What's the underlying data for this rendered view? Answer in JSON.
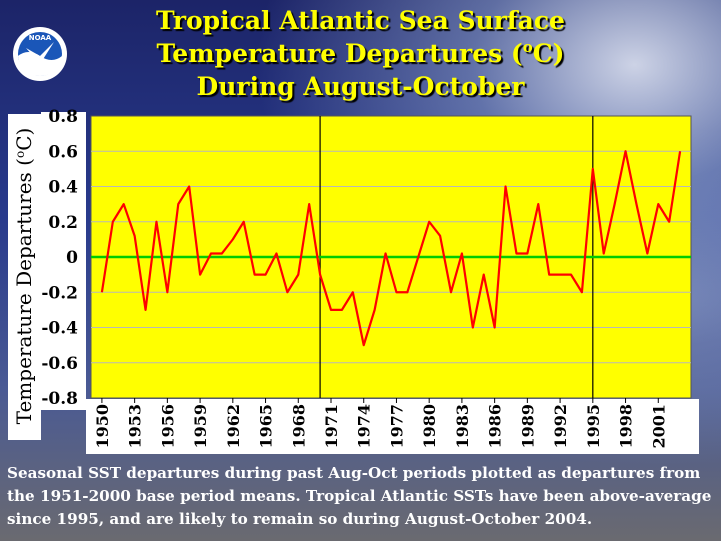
{
  "title_lines": [
    "Tropical Atlantic Sea Surface",
    "Temperature Departures (",
    "o",
    "C)",
    "During August-October"
  ],
  "logo": {
    "icon": "noaa-logo",
    "text": "NOAA"
  },
  "ylabel_parts": [
    "Temperature Departures (",
    "o",
    "C)"
  ],
  "caption": "Seasonal SST departures during past Aug-Oct periods plotted as departures from the 1951-2000 base period means. Tropical Atlantic SSTs have been above-average since 1995, and are likely to remain so during August-October 2004.",
  "colors": {
    "plot_bg": "#ffff00",
    "line": "#ff0000",
    "zero_line": "#00cc00",
    "title": "#ffff00",
    "caption": "#ffffff"
  },
  "chart_data": {
    "type": "line",
    "title": "Tropical Atlantic Sea Surface Temperature Departures (oC) During August-October",
    "ylabel": "Temperature Departures (oC)",
    "xlabel": "",
    "ylim": [
      -0.8,
      0.8
    ],
    "yticks": [
      "0.8",
      "0.6",
      "0.4",
      "0.2",
      "0",
      "-0.2",
      "-0.4",
      "-0.6",
      "-0.8"
    ],
    "xlim": [
      1949,
      2004
    ],
    "xticks": [
      "1950",
      "1953",
      "1956",
      "1959",
      "1962",
      "1965",
      "1968",
      "1971",
      "1974",
      "1977",
      "1980",
      "1983",
      "1986",
      "1989",
      "1992",
      "1995",
      "1998",
      "2001"
    ],
    "vertical_lines": [
      1970,
      1995
    ],
    "zero_line": 0,
    "grid": true,
    "series": [
      {
        "x": [
          1950,
          1951,
          1952,
          1953,
          1954,
          1955,
          1956,
          1957,
          1958,
          1959,
          1960,
          1961,
          1962,
          1963,
          1964,
          1965,
          1966,
          1967,
          1968,
          1969,
          1970,
          1971,
          1972,
          1973,
          1974,
          1975,
          1976,
          1977,
          1978,
          1979,
          1980,
          1981,
          1982,
          1983,
          1984,
          1985,
          1986,
          1987,
          1988,
          1989,
          1990,
          1991,
          1992,
          1993,
          1994,
          1995,
          1996,
          1997,
          1998,
          1999,
          2000,
          2001,
          2002,
          2003
        ],
        "values": [
          -0.2,
          0.2,
          0.3,
          0.12,
          -0.3,
          0.2,
          -0.2,
          0.3,
          0.4,
          -0.1,
          0.02,
          0.02,
          0.1,
          0.2,
          -0.1,
          -0.1,
          0.02,
          -0.2,
          -0.1,
          0.3,
          -0.1,
          -0.3,
          -0.3,
          -0.2,
          -0.5,
          -0.3,
          0.02,
          -0.2,
          -0.2,
          0.0,
          0.2,
          0.12,
          -0.2,
          0.02,
          -0.4,
          -0.1,
          -0.4,
          0.4,
          0.02,
          0.02,
          0.3,
          -0.1,
          -0.1,
          -0.1,
          -0.2,
          0.5,
          0.02,
          0.3,
          0.6,
          0.3,
          0.02,
          0.3,
          0.2,
          0.6
        ]
      }
    ]
  }
}
